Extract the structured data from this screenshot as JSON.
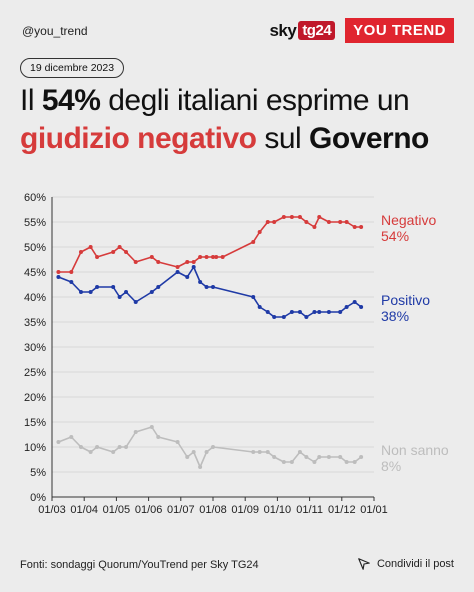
{
  "header": {
    "handle": "@you_trend",
    "sky_label": "sky",
    "tg24_label": "tg24",
    "youtrend_label": "YOU TREND",
    "date": "19 dicembre 2023"
  },
  "title": {
    "part1": "Il ",
    "pct": "54%",
    "part2": " degli italiani esprime un",
    "neg": "giudizio negativo",
    "part3": " sul ",
    "gov": "Governo"
  },
  "footer": {
    "source": "Fonti: sondaggi Quorum/YouTrend per Sky TG24",
    "share": "Condividi il post"
  },
  "colors": {
    "negativo": "#d63b3b",
    "positivo": "#1f3aa6",
    "non_sanno": "#bdbdbd"
  },
  "chart_data": {
    "type": "line",
    "ylim": [
      0,
      60
    ],
    "y_ticks": [
      "0%",
      "5%",
      "10%",
      "15%",
      "20%",
      "25%",
      "30%",
      "35%",
      "40%",
      "45%",
      "50%",
      "55%",
      "60%"
    ],
    "x_ticks": [
      "01/03",
      "01/04",
      "01/05",
      "01/06",
      "01/07",
      "01/08",
      "01/09",
      "01/10",
      "01/11",
      "01/12",
      "01/01"
    ],
    "series": [
      {
        "name": "Negativo",
        "end_label": "54%",
        "x": [
          3.2,
          3.6,
          3.9,
          4.2,
          4.4,
          4.9,
          5.1,
          5.3,
          5.6,
          6.1,
          6.3,
          6.9,
          7.2,
          7.4,
          7.6,
          7.8,
          8.0,
          8.1,
          8.3,
          9.25,
          9.45,
          9.7,
          9.9,
          10.2,
          10.45,
          10.7,
          10.9,
          11.15,
          11.3,
          11.6,
          11.95,
          12.15,
          12.4,
          12.6
        ],
        "values": [
          45,
          45,
          49,
          50,
          48,
          49,
          50,
          49,
          47,
          48,
          47,
          46,
          47,
          47,
          48,
          48,
          48,
          48,
          48,
          51,
          53,
          55,
          55,
          56,
          56,
          56,
          55,
          54,
          56,
          55,
          55,
          55,
          54,
          54
        ]
      },
      {
        "name": "Positivo",
        "end_label": "38%",
        "x": [
          3.2,
          3.6,
          3.9,
          4.2,
          4.4,
          4.9,
          5.1,
          5.3,
          5.6,
          6.1,
          6.3,
          6.9,
          7.2,
          7.4,
          7.6,
          7.8,
          8.0,
          9.25,
          9.45,
          9.7,
          9.9,
          10.2,
          10.45,
          10.7,
          10.9,
          11.15,
          11.3,
          11.6,
          11.95,
          12.15,
          12.4,
          12.6
        ],
        "values": [
          44,
          43,
          41,
          41,
          42,
          42,
          40,
          41,
          39,
          41,
          42,
          45,
          44,
          46,
          43,
          42,
          42,
          40,
          38,
          37,
          36,
          36,
          37,
          37,
          36,
          37,
          37,
          37,
          37,
          38,
          39,
          38
        ]
      },
      {
        "name": "Non sanno",
        "end_label": "8%",
        "x": [
          3.2,
          3.6,
          3.9,
          4.2,
          4.4,
          4.9,
          5.1,
          5.3,
          5.6,
          6.1,
          6.3,
          6.9,
          7.2,
          7.4,
          7.6,
          7.8,
          8.0,
          9.25,
          9.45,
          9.7,
          9.9,
          10.2,
          10.45,
          10.7,
          10.9,
          11.15,
          11.3,
          11.6,
          11.95,
          12.15,
          12.4,
          12.6
        ],
        "values": [
          11,
          12,
          10,
          9,
          10,
          9,
          10,
          10,
          13,
          14,
          12,
          11,
          8,
          9,
          6,
          9,
          10,
          9,
          9,
          9,
          8,
          7,
          7,
          9,
          8,
          7,
          8,
          8,
          8,
          7,
          7,
          8
        ]
      }
    ]
  }
}
